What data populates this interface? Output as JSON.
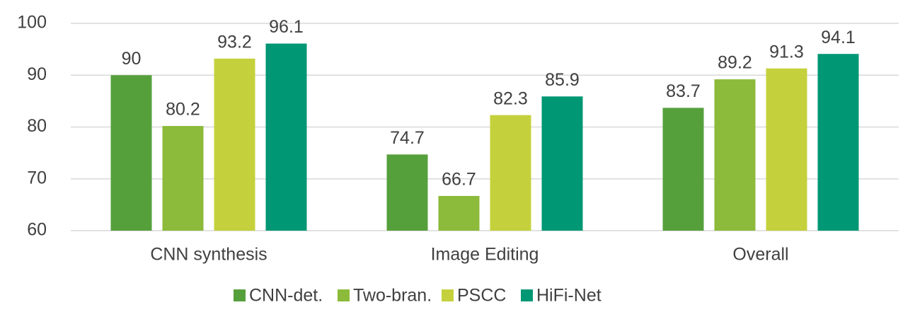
{
  "chart_data": {
    "type": "bar",
    "categories": [
      "CNN synthesis",
      "Image Editing",
      "Overall"
    ],
    "series": [
      {
        "name": "CNN-det.",
        "color": "#56a03c",
        "values": [
          90,
          74.7,
          83.7
        ]
      },
      {
        "name": "Two-bran.",
        "color": "#8cba3a",
        "values": [
          80.2,
          66.7,
          89.2
        ]
      },
      {
        "name": "PSCC",
        "color": "#c4d13c",
        "values": [
          93.2,
          82.3,
          91.3
        ]
      },
      {
        "name": "HiFi-Net",
        "color": "#009775",
        "values": [
          96.1,
          85.9,
          94.1
        ]
      }
    ],
    "ylim": [
      60,
      100
    ],
    "yticks": [
      60,
      70,
      80,
      90,
      100
    ],
    "grid": true,
    "legend": "bottom"
  }
}
